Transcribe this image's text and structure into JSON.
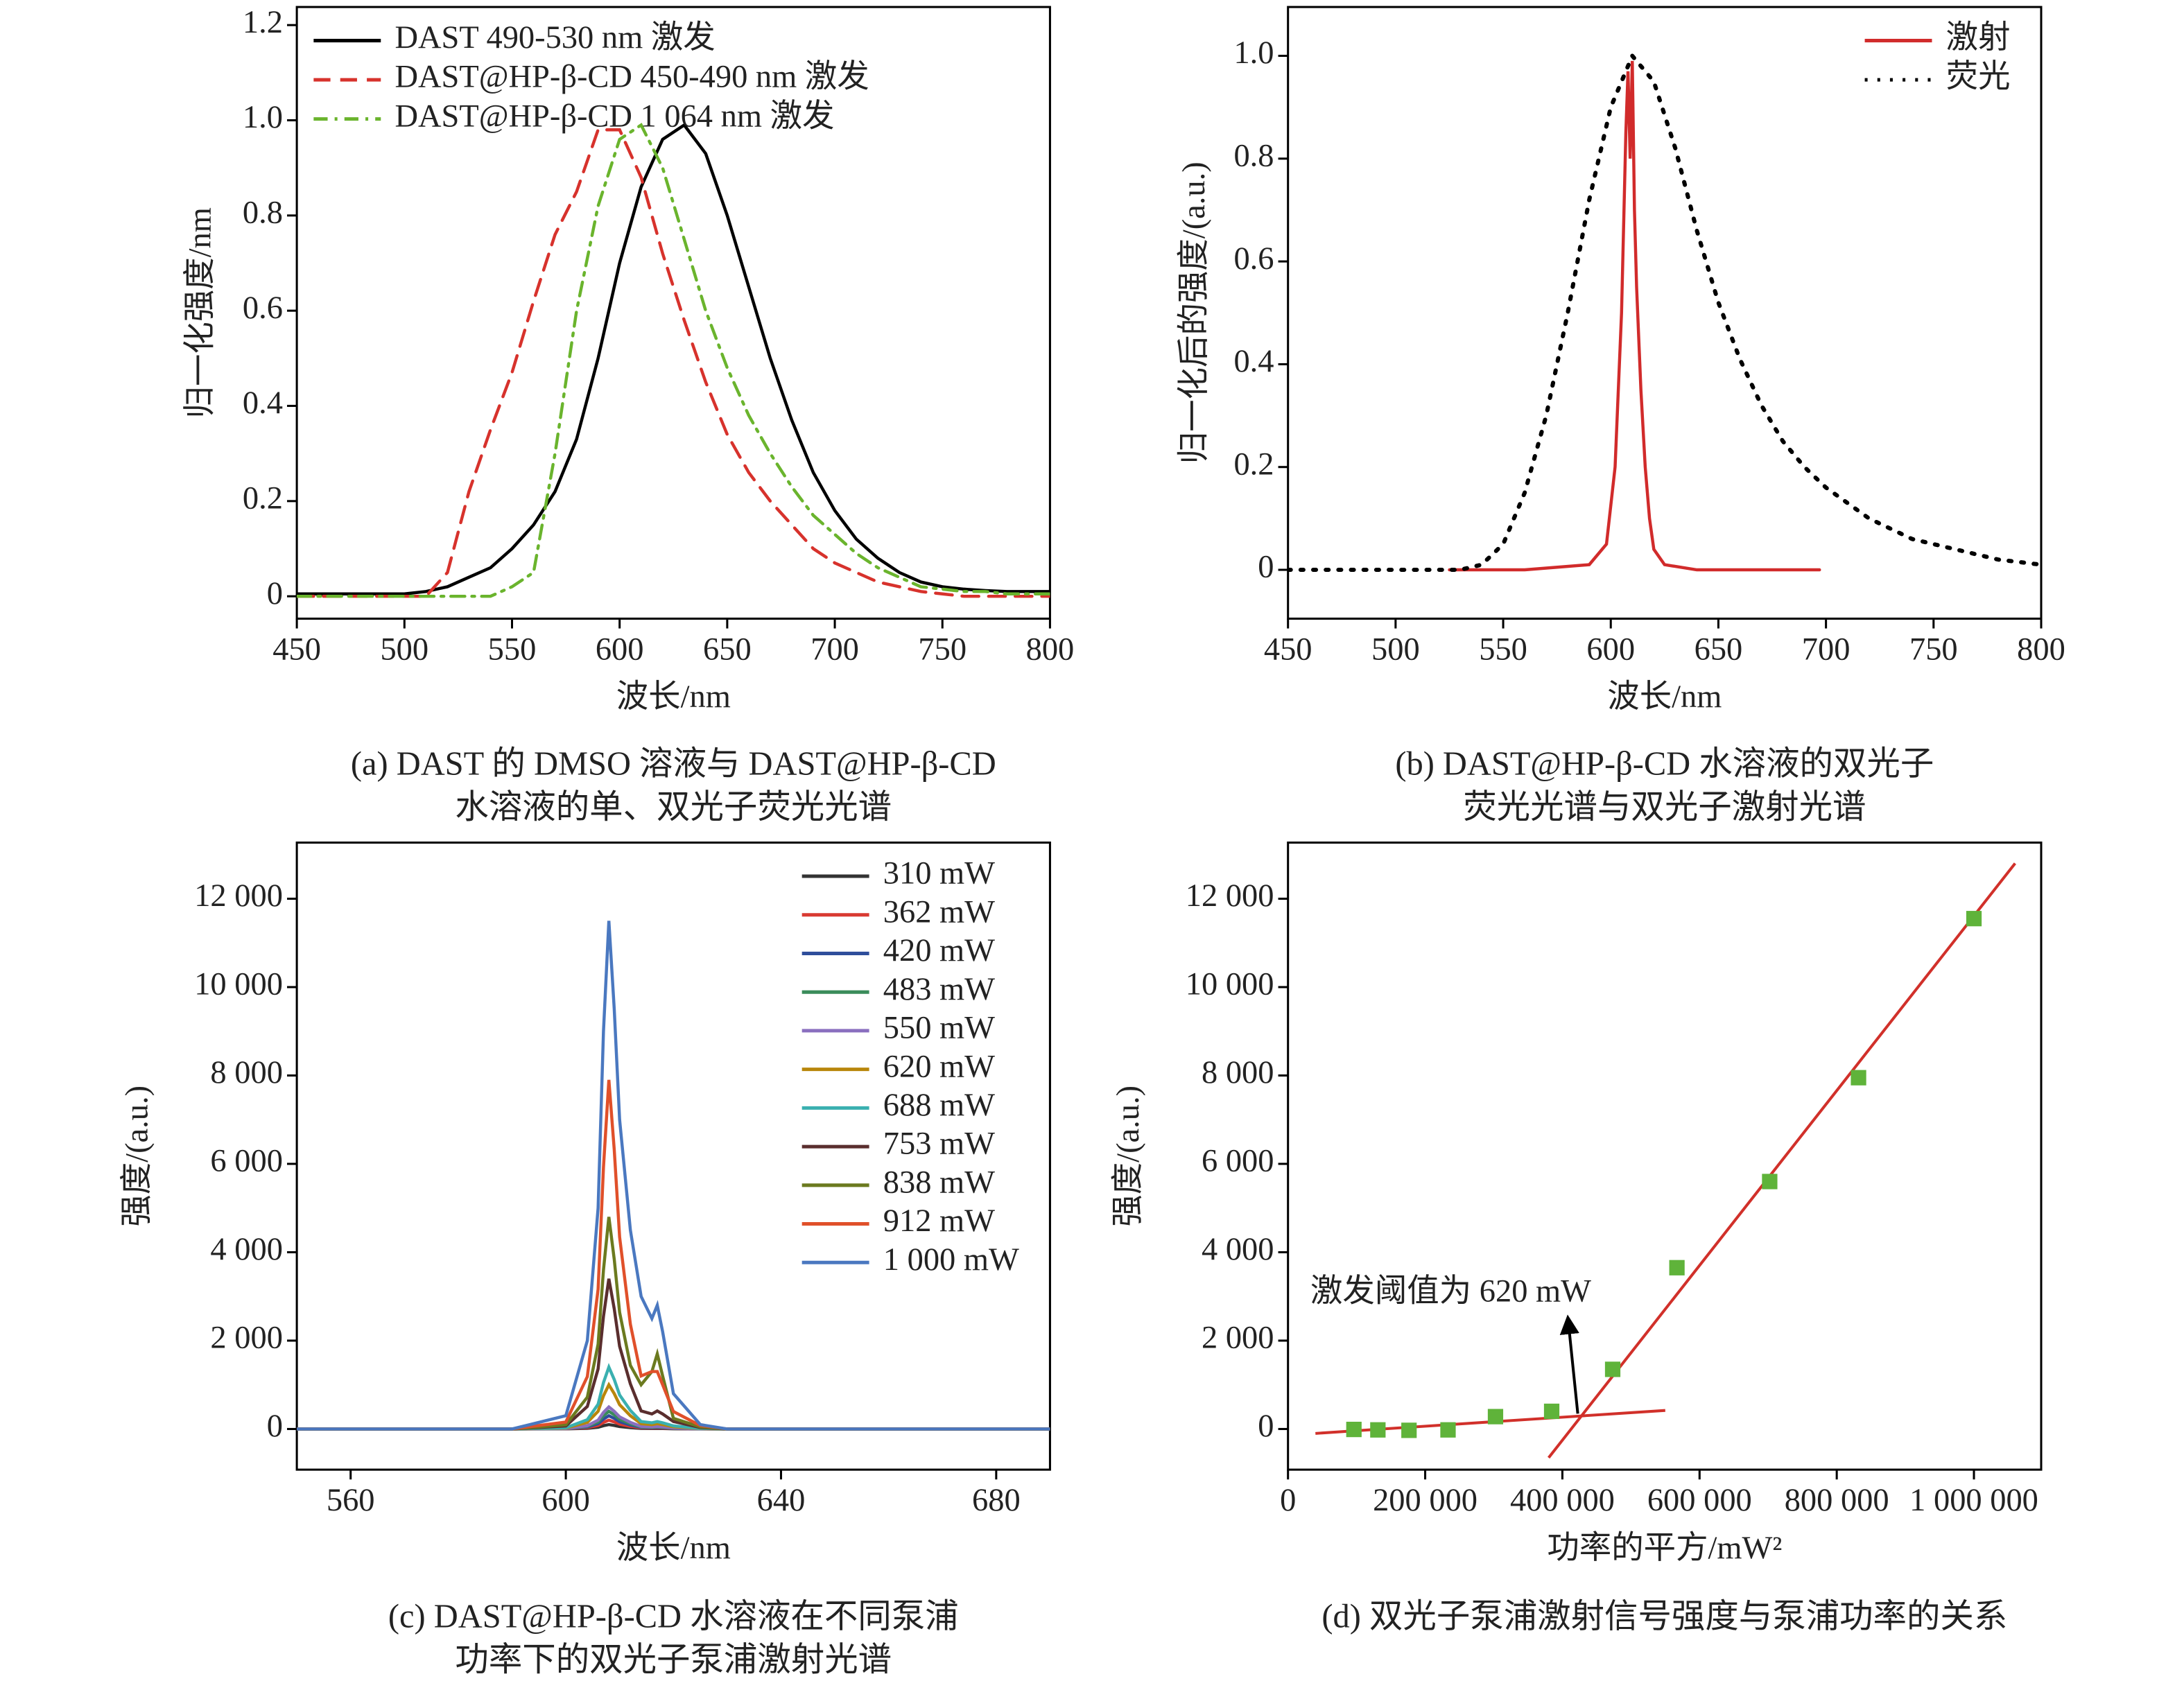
{
  "chart_data": [
    {
      "type": "line",
      "x_label": "波长/nm",
      "y_label": "归一化强度/nm",
      "caption": [
        "(a) DAST 的 DMSO 溶液与 DAST@HP-β-CD",
        "水溶液的单、双光子荧光光谱"
      ],
      "xlim": [
        450,
        800
      ],
      "xticks": [
        450,
        500,
        550,
        600,
        650,
        700,
        750,
        800
      ],
      "ylim": [
        -0.047,
        1.238
      ],
      "yticks": [
        0,
        0.2,
        0.4,
        0.6,
        0.8,
        {
          "value": 1,
          "label": "1.0"
        },
        1.2
      ],
      "legend": "upper left",
      "x": [
        450,
        460,
        470,
        480,
        490,
        500,
        510,
        520,
        530,
        540,
        550,
        560,
        570,
        580,
        590,
        600,
        610,
        620,
        630,
        640,
        650,
        660,
        670,
        680,
        690,
        700,
        710,
        720,
        730,
        740,
        750,
        760,
        770,
        780,
        790,
        800
      ],
      "series": [
        {
          "name": "DAST 490-530 nm 激发",
          "color": "#000000",
          "dash": "solid",
          "values": [
            0.005,
            0.005,
            0.005,
            0.005,
            0.005,
            0.005,
            0.01,
            0.02,
            0.04,
            0.06,
            0.1,
            0.15,
            0.22,
            0.33,
            0.5,
            0.7,
            0.86,
            0.96,
            0.99,
            0.93,
            0.8,
            0.65,
            0.5,
            0.37,
            0.26,
            0.18,
            0.12,
            0.08,
            0.05,
            0.03,
            0.02,
            0.015,
            0.012,
            0.01,
            0.01,
            0.01
          ]
        },
        {
          "name": "DAST@HP-β-CD 450-490 nm 激发",
          "color": "#d7322c",
          "dash": "dashed",
          "values": [
            0,
            0,
            0,
            0,
            0,
            0,
            0,
            0.05,
            0.22,
            0.35,
            0.47,
            0.62,
            0.76,
            0.85,
            0.98,
            0.98,
            0.88,
            0.72,
            0.58,
            0.45,
            0.34,
            0.26,
            0.2,
            0.15,
            0.1,
            0.07,
            0.05,
            0.03,
            0.02,
            0.01,
            0.005,
            0,
            0,
            0,
            0,
            0
          ]
        },
        {
          "name": "DAST@HP-β-CD 1 064 nm 激发",
          "color": "#6ab42d",
          "dash": "dashdot",
          "values": [
            0,
            0,
            0,
            0,
            0,
            0,
            0,
            0,
            0,
            0,
            0.02,
            0.05,
            0.3,
            0.6,
            0.82,
            0.96,
            0.99,
            0.9,
            0.75,
            0.6,
            0.48,
            0.38,
            0.3,
            0.23,
            0.17,
            0.13,
            0.09,
            0.06,
            0.04,
            0.02,
            0.015,
            0.01,
            0.01,
            0.005,
            0.005,
            0.005
          ]
        }
      ]
    },
    {
      "type": "line",
      "x_label": "波长/nm",
      "y_label": "归一化后的强度/(a.u.)",
      "caption": [
        "(b) DAST@HP-β-CD 水溶液的双光子",
        "荧光光谱与双光子激射光谱"
      ],
      "xlim": [
        450,
        800
      ],
      "xticks": [
        450,
        500,
        550,
        600,
        650,
        700,
        750,
        800
      ],
      "ylim": [
        -0.095,
        1.095
      ],
      "yticks": [
        0,
        0.2,
        0.4,
        0.6,
        0.8,
        {
          "value": 1,
          "label": "1.0"
        }
      ],
      "legend": "upper right",
      "series": [
        {
          "name": "激射",
          "color": "#d12b2b",
          "dash": "solid",
          "x": [
            525,
            560,
            590,
            598,
            602,
            605,
            607,
            608,
            609,
            610,
            611,
            612,
            614,
            616,
            618,
            620,
            625,
            640,
            697
          ],
          "values": [
            0,
            0,
            0.01,
            0.05,
            0.2,
            0.5,
            0.85,
            0.97,
            0.8,
            0.99,
            0.7,
            0.55,
            0.35,
            0.2,
            0.1,
            0.04,
            0.01,
            0,
            0
          ]
        },
        {
          "name": "荧光",
          "color": "#000000",
          "dash": "dotted",
          "x": [
            450,
            460,
            470,
            480,
            490,
            500,
            510,
            520,
            530,
            540,
            550,
            560,
            570,
            580,
            590,
            600,
            610,
            620,
            630,
            640,
            650,
            660,
            670,
            680,
            690,
            700,
            710,
            720,
            730,
            740,
            750,
            760,
            770,
            780,
            790,
            800
          ],
          "values": [
            0,
            0,
            0,
            0,
            0,
            0,
            0,
            0,
            0,
            0.01,
            0.05,
            0.15,
            0.3,
            0.5,
            0.72,
            0.9,
            1.0,
            0.95,
            0.82,
            0.66,
            0.52,
            0.41,
            0.32,
            0.25,
            0.2,
            0.16,
            0.13,
            0.1,
            0.08,
            0.06,
            0.05,
            0.04,
            0.03,
            0.02,
            0.015,
            0.01
          ]
        }
      ]
    },
    {
      "type": "line",
      "x_label": "波长/nm",
      "y_label": "强度/(a.u.)",
      "caption": [
        "(c) DAST@HP-β-CD 水溶液在不同泵浦",
        "功率下的双光子泵浦激射光谱"
      ],
      "xlim": [
        550,
        690
      ],
      "xticks": [
        560,
        600,
        640,
        680
      ],
      "ylim": [
        -920,
        13270
      ],
      "yticks": [
        0,
        {
          "value": 2000,
          "label": "2 000"
        },
        {
          "value": 4000,
          "label": "4 000"
        },
        {
          "value": 6000,
          "label": "6 000"
        },
        {
          "value": 8000,
          "label": "8 000"
        },
        {
          "value": 10000,
          "label": "10 000"
        },
        {
          "value": 12000,
          "label": "12 000"
        }
      ],
      "legend": "upper right",
      "x": [
        550,
        590,
        600,
        604,
        606,
        607,
        608,
        609,
        610,
        612,
        614,
        616,
        617,
        618,
        620,
        625,
        630,
        690
      ],
      "series": [
        {
          "name": "310 mW",
          "color": "#333333",
          "dash": "solid",
          "values": [
            0,
            0,
            2,
            15,
            40,
            75,
            100,
            80,
            55,
            30,
            12,
            10,
            12,
            10,
            5,
            1,
            0,
            0
          ]
        },
        {
          "name": "362 mW",
          "color": "#d93a32",
          "dash": "solid",
          "values": [
            0,
            0,
            4,
            30,
            80,
            150,
            200,
            160,
            110,
            60,
            24,
            20,
            24,
            20,
            10,
            2,
            0,
            0
          ]
        },
        {
          "name": "420 mW",
          "color": "#2e4d9b",
          "dash": "solid",
          "values": [
            0,
            0,
            6,
            45,
            120,
            225,
            300,
            240,
            165,
            90,
            36,
            30,
            36,
            30,
            15,
            3,
            0,
            0
          ]
        },
        {
          "name": "483 mW",
          "color": "#3a8c5a",
          "dash": "solid",
          "values": [
            0,
            0,
            8,
            60,
            160,
            300,
            400,
            320,
            220,
            120,
            48,
            40,
            48,
            40,
            20,
            4,
            0,
            0
          ]
        },
        {
          "name": "550 mW",
          "color": "#8a6fbf",
          "dash": "solid",
          "values": [
            0,
            0,
            10,
            75,
            200,
            375,
            500,
            400,
            275,
            150,
            60,
            50,
            60,
            50,
            25,
            5,
            0,
            0
          ]
        },
        {
          "name": "620 mW",
          "color": "#b8860b",
          "dash": "solid",
          "values": [
            0,
            0,
            20,
            150,
            400,
            750,
            1000,
            800,
            550,
            300,
            120,
            100,
            120,
            100,
            50,
            10,
            0,
            0
          ]
        },
        {
          "name": "688 mW",
          "color": "#3ab0b0",
          "dash": "solid",
          "values": [
            0,
            0,
            28,
            210,
            560,
            1050,
            1400,
            1120,
            770,
            420,
            168,
            140,
            168,
            140,
            70,
            14,
            0,
            0
          ]
        },
        {
          "name": "753 mW",
          "color": "#5a2e2e",
          "dash": "solid",
          "values": [
            0,
            0,
            68,
            510,
            1360,
            2550,
            3400,
            2720,
            1870,
            1020,
            408,
            340,
            408,
            340,
            170,
            34,
            0,
            0
          ]
        },
        {
          "name": "838 mW",
          "color": "#6b7a1f",
          "dash": "solid",
          "values": [
            0,
            0,
            96,
            720,
            1920,
            3600,
            4800,
            3840,
            2640,
            1440,
            1000,
            1300,
            1700,
            1200,
            240,
            48,
            0,
            0
          ]
        },
        {
          "name": "912 mW",
          "color": "#e0502a",
          "dash": "solid",
          "values": [
            0,
            0,
            158,
            1185,
            3160,
            5925,
            7900,
            6320,
            4345,
            2370,
            1200,
            1300,
            1300,
            1000,
            395,
            79,
            0,
            0
          ]
        },
        {
          "name": "1 000 mW",
          "color": "#4a78c0",
          "dash": "solid",
          "values": [
            0,
            0,
            300,
            2000,
            5000,
            9000,
            11500,
            9500,
            7000,
            4500,
            3000,
            2500,
            2800,
            2200,
            800,
            100,
            0,
            0
          ]
        }
      ]
    },
    {
      "type": "scatter",
      "x_label": "功率的平方/mW²",
      "y_label": "强度/(a.u.)",
      "caption": [
        "(d) 双光子泵浦激射信号强度与泵浦功率的关系"
      ],
      "annotation": "激发阈值为 620 mW",
      "xlim": [
        0,
        1098000
      ],
      "xticks": [
        0,
        {
          "value": 200000,
          "label": "200 000"
        },
        {
          "value": 400000,
          "label": "400 000"
        },
        {
          "value": 600000,
          "label": "600 000"
        },
        {
          "value": 800000,
          "label": "800 000"
        },
        {
          "value": 1000000,
          "label": "1 000 000"
        }
      ],
      "ylim": [
        -920,
        13270
      ],
      "yticks": [
        0,
        {
          "value": 2000,
          "label": "2 000"
        },
        {
          "value": 4000,
          "label": "4 000"
        },
        {
          "value": 6000,
          "label": "6 000"
        },
        {
          "value": 8000,
          "label": "8 000"
        },
        {
          "value": 10000,
          "label": "10 000"
        },
        {
          "value": 12000,
          "label": "12 000"
        }
      ],
      "color": "#5fb33a",
      "x": [
        96100,
        131044,
        176400,
        233289,
        302500,
        384400,
        473344,
        567009,
        702244,
        831744,
        1000000
      ],
      "values": [
        -10,
        -20,
        -30,
        -20,
        280,
        400,
        1350,
        3650,
        5600,
        7950,
        11550
      ],
      "fit_color": "#d1302a",
      "fit_lines": [
        {
          "x": [
            40000,
            550000
          ],
          "values": [
            -100,
            420
          ]
        },
        {
          "x": [
            380000,
            1060000
          ],
          "values": [
            -650,
            12800
          ]
        }
      ]
    }
  ]
}
